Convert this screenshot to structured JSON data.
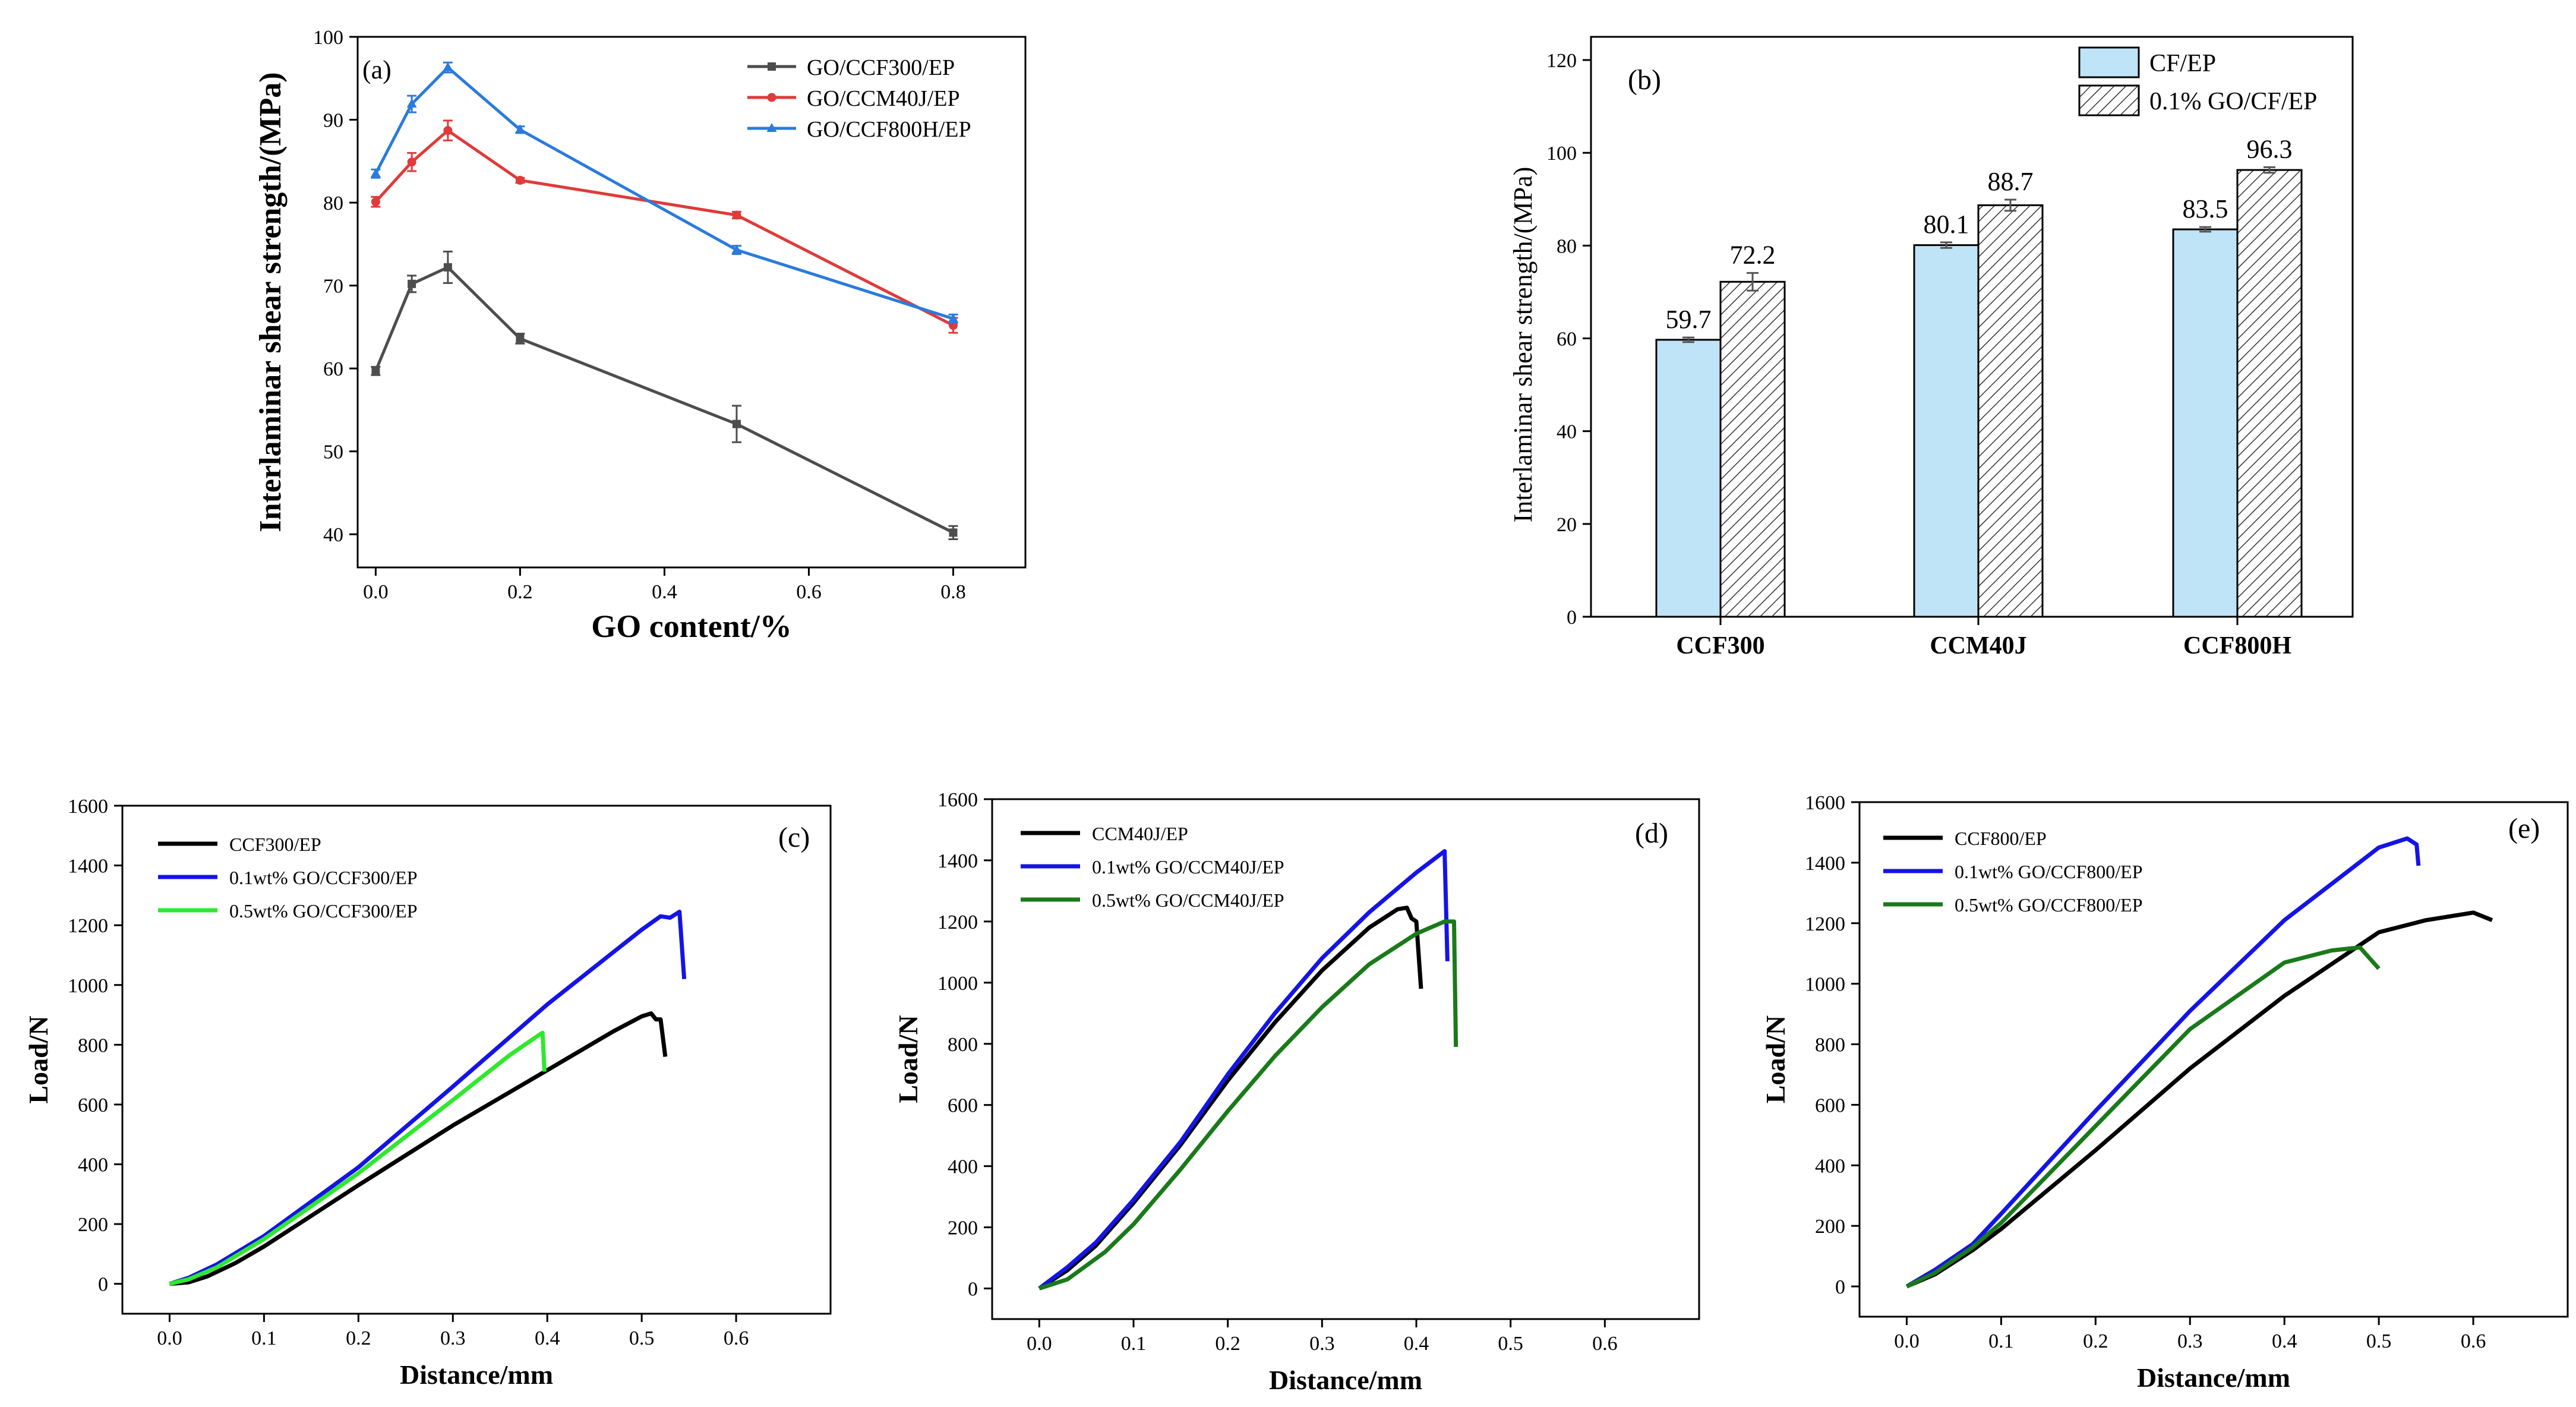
{
  "chart_data": [
    {
      "id": "a",
      "type": "line",
      "panel_label": "(a)",
      "xlabel": "GO content/%",
      "ylabel": "Interlaminar shear strength/(MPa)",
      "xlim": [
        -0.025,
        0.9
      ],
      "ylim": [
        36,
        100
      ],
      "xticks": [
        0.0,
        0.2,
        0.4,
        0.6,
        0.8
      ],
      "xtick_labels": [
        "0.0",
        "0.2",
        "0.4",
        "0.6",
        "0.8"
      ],
      "yticks": [
        40,
        50,
        60,
        70,
        80,
        90,
        100
      ],
      "ytick_labels": [
        "40",
        "50",
        "60",
        "70",
        "80",
        "90",
        "100"
      ],
      "legend_position": "top-right",
      "series": [
        {
          "name": "GO/CCF300/EP",
          "color": "#4d4d4d",
          "marker": "square",
          "x": [
            0,
            0.05,
            0.1,
            0.2,
            0.5,
            0.8
          ],
          "y": [
            59.7,
            70.2,
            72.2,
            63.6,
            53.3,
            40.2
          ],
          "err": [
            0.5,
            1.0,
            1.9,
            0.6,
            2.2,
            0.8
          ]
        },
        {
          "name": "GO/CCM40J/EP",
          "color": "#e03a3a",
          "marker": "circle",
          "x": [
            0,
            0.05,
            0.1,
            0.2,
            0.5,
            0.8
          ],
          "y": [
            80.1,
            84.9,
            88.7,
            82.7,
            78.5,
            65.2
          ],
          "err": [
            0.6,
            1.1,
            1.2,
            0.3,
            0.4,
            0.9
          ]
        },
        {
          "name": "GO/CCF800H/EP",
          "color": "#2a7bdc",
          "marker": "triangle",
          "x": [
            0,
            0.05,
            0.1,
            0.2,
            0.5,
            0.8
          ],
          "y": [
            83.5,
            91.9,
            96.3,
            88.8,
            74.3,
            66.0
          ],
          "err": [
            0.5,
            1.0,
            0.6,
            0.4,
            0.5,
            0.5
          ]
        }
      ]
    },
    {
      "id": "b",
      "type": "bar",
      "panel_label": "(b)",
      "ylabel": "Interlaminar shear strength/(MPa)",
      "ylim": [
        0,
        125
      ],
      "yticks": [
        0,
        20,
        40,
        60,
        80,
        100,
        120
      ],
      "ytick_labels": [
        "0",
        "20",
        "40",
        "60",
        "80",
        "100",
        "120"
      ],
      "categories": [
        "CCF300",
        "CCM40J",
        "CCF800H"
      ],
      "legend_position": "top-right",
      "series": [
        {
          "name": "CF/EP",
          "fill": "#bfe4f7",
          "values": [
            59.7,
            80.1,
            83.5
          ],
          "labels": [
            "59.7",
            "80.1",
            "83.5"
          ],
          "err": [
            0.5,
            0.6,
            0.5
          ]
        },
        {
          "name": "0.1% GO/CF/EP",
          "fill": "hatch",
          "values": [
            72.2,
            88.7,
            96.3
          ],
          "labels": [
            "72.2",
            "88.7",
            "96.3"
          ],
          "err": [
            1.9,
            1.2,
            0.6
          ]
        }
      ]
    },
    {
      "id": "c",
      "type": "line",
      "panel_label": "(c)",
      "xlabel": "Distance/mm",
      "ylabel": "Load/N",
      "xlim": [
        -0.05,
        0.7
      ],
      "ylim": [
        -100,
        1600
      ],
      "xticks": [
        0.0,
        0.1,
        0.2,
        0.3,
        0.4,
        0.5,
        0.6
      ],
      "xtick_labels": [
        "0.0",
        "0.1",
        "0.2",
        "0.3",
        "0.4",
        "0.5",
        "0.6"
      ],
      "yticks": [
        0,
        200,
        400,
        600,
        800,
        1000,
        1200,
        1400,
        1600
      ],
      "ytick_labels": [
        "0",
        "200",
        "400",
        "600",
        "800",
        "1000",
        "1200",
        "1400",
        "1600"
      ],
      "legend_position": "top-left",
      "series": [
        {
          "name": "CCF300/EP",
          "color": "#000000",
          "x": [
            0,
            0.02,
            0.04,
            0.07,
            0.1,
            0.2,
            0.3,
            0.4,
            0.47,
            0.5,
            0.51,
            0.515,
            0.52,
            0.525
          ],
          "y": [
            0,
            5,
            25,
            70,
            125,
            330,
            530,
            715,
            845,
            895,
            905,
            885,
            885,
            760
          ]
        },
        {
          "name": "0.1wt% GO/CCF300/EP",
          "color": "#1414e6",
          "x": [
            0,
            0.02,
            0.05,
            0.1,
            0.2,
            0.3,
            0.4,
            0.5,
            0.52,
            0.53,
            0.54,
            0.545
          ],
          "y": [
            0,
            20,
            65,
            160,
            390,
            660,
            935,
            1185,
            1230,
            1225,
            1245,
            1020
          ]
        },
        {
          "name": "0.5wt% GO/CCF300/EP",
          "color": "#2ee82e",
          "x": [
            0,
            0.02,
            0.05,
            0.1,
            0.2,
            0.3,
            0.36,
            0.39,
            0.395,
            0.397
          ],
          "y": [
            0,
            15,
            55,
            150,
            370,
            615,
            765,
            830,
            840,
            710
          ]
        }
      ]
    },
    {
      "id": "d",
      "type": "line",
      "panel_label": "(d)",
      "xlabel": "Distance/mm",
      "ylabel": "Load/N",
      "xlim": [
        -0.05,
        0.7
      ],
      "ylim": [
        -100,
        1600
      ],
      "xticks": [
        0.0,
        0.1,
        0.2,
        0.3,
        0.4,
        0.5,
        0.6
      ],
      "xtick_labels": [
        "0.0",
        "0.1",
        "0.2",
        "0.3",
        "0.4",
        "0.5",
        "0.6"
      ],
      "yticks": [
        0,
        200,
        400,
        600,
        800,
        1000,
        1200,
        1400,
        1600
      ],
      "ytick_labels": [
        "0",
        "200",
        "400",
        "600",
        "800",
        "1000",
        "1200",
        "1400",
        "1600"
      ],
      "legend_position": "top-left",
      "series": [
        {
          "name": "CCM40J/EP",
          "color": "#000000",
          "x": [
            0,
            0.03,
            0.06,
            0.1,
            0.15,
            0.2,
            0.25,
            0.3,
            0.35,
            0.38,
            0.39,
            0.395,
            0.4,
            0.405
          ],
          "y": [
            0,
            60,
            140,
            280,
            470,
            680,
            870,
            1040,
            1180,
            1240,
            1245,
            1210,
            1200,
            980
          ]
        },
        {
          "name": "0.1wt% GO/CCM40J/EP",
          "color": "#1414e6",
          "x": [
            0,
            0.03,
            0.06,
            0.1,
            0.15,
            0.2,
            0.25,
            0.3,
            0.35,
            0.4,
            0.43,
            0.433
          ],
          "y": [
            0,
            70,
            150,
            290,
            480,
            700,
            900,
            1080,
            1230,
            1360,
            1430,
            1070
          ]
        },
        {
          "name": "0.5wt% GO/CCM40J/EP",
          "color": "#1a7a1a",
          "x": [
            0,
            0.03,
            0.07,
            0.1,
            0.15,
            0.2,
            0.25,
            0.3,
            0.35,
            0.4,
            0.43,
            0.44,
            0.442
          ],
          "y": [
            0,
            30,
            120,
            210,
            390,
            580,
            760,
            920,
            1060,
            1160,
            1200,
            1200,
            790
          ]
        }
      ]
    },
    {
      "id": "e",
      "type": "line",
      "panel_label": "(e)",
      "xlabel": "Distance/mm",
      "ylabel": "Load/N",
      "xlim": [
        -0.05,
        0.7
      ],
      "ylim": [
        -100,
        1600
      ],
      "xticks": [
        0.0,
        0.1,
        0.2,
        0.3,
        0.4,
        0.5,
        0.6
      ],
      "xtick_labels": [
        "0.0",
        "0.1",
        "0.2",
        "0.3",
        "0.4",
        "0.5",
        "0.6"
      ],
      "yticks": [
        0,
        200,
        400,
        600,
        800,
        1000,
        1200,
        1400,
        1600
      ],
      "ytick_labels": [
        "0",
        "200",
        "400",
        "600",
        "800",
        "1000",
        "1200",
        "1400",
        "1600"
      ],
      "legend_position": "top-left",
      "series": [
        {
          "name": "CCF800/EP",
          "color": "#000000",
          "x": [
            0,
            0.03,
            0.07,
            0.1,
            0.2,
            0.3,
            0.4,
            0.5,
            0.55,
            0.6,
            0.62
          ],
          "y": [
            0,
            40,
            120,
            190,
            450,
            720,
            960,
            1170,
            1210,
            1235,
            1210
          ]
        },
        {
          "name": "0.1wt% GO/CCF800/EP",
          "color": "#1414e6",
          "x": [
            0,
            0.03,
            0.07,
            0.1,
            0.2,
            0.3,
            0.4,
            0.5,
            0.53,
            0.54,
            0.542
          ],
          "y": [
            0,
            55,
            140,
            240,
            580,
            910,
            1210,
            1450,
            1480,
            1460,
            1390
          ]
        },
        {
          "name": "0.5wt% GO/CCF800/EP",
          "color": "#1a7a1a",
          "x": [
            0,
            0.03,
            0.07,
            0.1,
            0.2,
            0.3,
            0.4,
            0.45,
            0.48,
            0.5
          ],
          "y": [
            0,
            45,
            130,
            210,
            530,
            850,
            1070,
            1110,
            1120,
            1050
          ]
        }
      ]
    }
  ]
}
